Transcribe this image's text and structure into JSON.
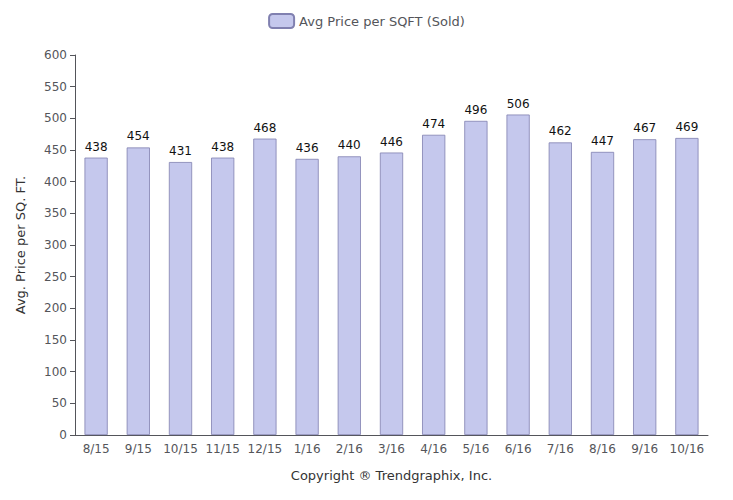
{
  "chart_data": {
    "type": "bar",
    "categories": [
      "8/15",
      "9/15",
      "10/15",
      "11/15",
      "12/15",
      "1/16",
      "2/16",
      "3/16",
      "4/16",
      "5/16",
      "6/16",
      "7/16",
      "8/16",
      "9/16",
      "10/16"
    ],
    "series": [
      {
        "name": "Avg Price per SQFT (Sold)",
        "color": "#c5c8ed",
        "values": [
          438,
          454,
          431,
          438,
          468,
          436,
          440,
          446,
          474,
          496,
          506,
          462,
          447,
          467,
          469
        ]
      }
    ],
    "xlabel": "Copyright ® Trendgraphix, Inc.",
    "ylabel": "Avg. Price per SQ. FT.",
    "ylim": [
      0,
      600
    ],
    "yticks": [
      0,
      50,
      100,
      150,
      200,
      250,
      300,
      350,
      400,
      450,
      500,
      550,
      600
    ],
    "grid": false,
    "legend": "top",
    "data_labels": true
  }
}
